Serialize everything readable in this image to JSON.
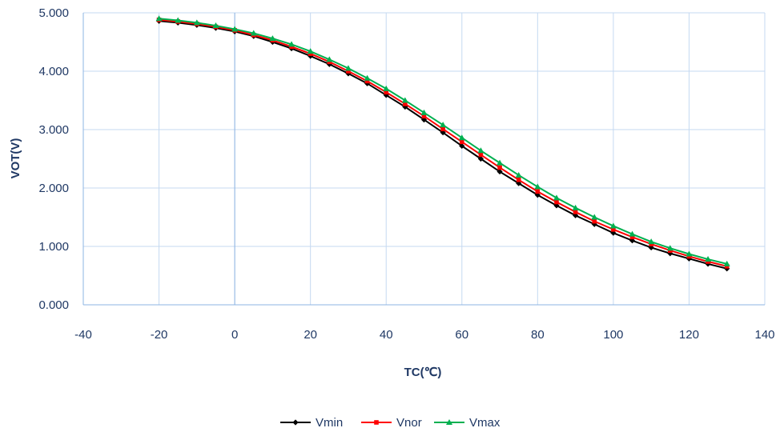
{
  "chart_data": {
    "type": "line",
    "xlabel": "TC(℃)",
    "ylabel": "VOT(V)",
    "xlim": [
      -40,
      140
    ],
    "ylim": [
      0,
      5
    ],
    "x_ticks": [
      "-40",
      "-20",
      "0",
      "20",
      "40",
      "60",
      "80",
      "100",
      "120",
      "140"
    ],
    "y_ticks": [
      "0.000",
      "1.000",
      "2.000",
      "3.000",
      "4.000",
      "5.000"
    ],
    "grid": true,
    "legend_position": "bottom",
    "x": [
      -20,
      -15,
      -10,
      -5,
      0,
      5,
      10,
      15,
      20,
      25,
      30,
      35,
      40,
      45,
      50,
      55,
      60,
      65,
      70,
      75,
      80,
      85,
      90,
      95,
      100,
      105,
      110,
      115,
      120,
      125,
      130
    ],
    "series": [
      {
        "name": "Vmin",
        "color": "#000000",
        "marker": "diamond",
        "values": [
          4.86,
          4.83,
          4.79,
          4.74,
          4.68,
          4.6,
          4.5,
          4.39,
          4.26,
          4.12,
          3.96,
          3.79,
          3.59,
          3.39,
          3.17,
          2.95,
          2.72,
          2.5,
          2.28,
          2.08,
          1.88,
          1.7,
          1.53,
          1.38,
          1.23,
          1.1,
          0.98,
          0.88,
          0.79,
          0.7,
          0.62
        ]
      },
      {
        "name": "Vnor",
        "color": "#ff0000",
        "marker": "square",
        "values": [
          4.88,
          4.85,
          4.81,
          4.76,
          4.7,
          4.62,
          4.53,
          4.42,
          4.3,
          4.16,
          4.0,
          3.83,
          3.64,
          3.44,
          3.23,
          3.01,
          2.79,
          2.57,
          2.35,
          2.14,
          1.94,
          1.76,
          1.59,
          1.43,
          1.29,
          1.16,
          1.04,
          0.93,
          0.83,
          0.74,
          0.66
        ]
      },
      {
        "name": "Vmax",
        "color": "#00b050",
        "marker": "triangle",
        "values": [
          4.9,
          4.87,
          4.83,
          4.78,
          4.72,
          4.65,
          4.56,
          4.46,
          4.34,
          4.2,
          4.05,
          3.88,
          3.7,
          3.5,
          3.29,
          3.08,
          2.86,
          2.64,
          2.43,
          2.22,
          2.02,
          1.83,
          1.66,
          1.5,
          1.35,
          1.21,
          1.08,
          0.97,
          0.87,
          0.78,
          0.7
        ]
      }
    ]
  }
}
